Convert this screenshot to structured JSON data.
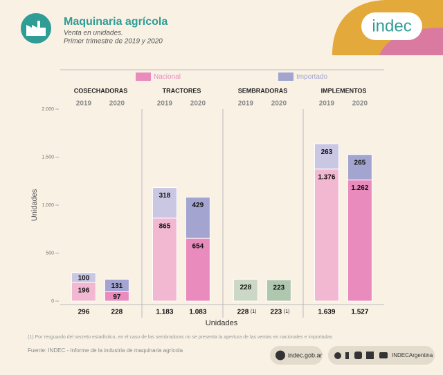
{
  "header": {
    "logo": "indec",
    "title": "Maquinaria agrícola",
    "subtitle": "Venta en unidades.",
    "period": "Primer trimestre de 2019 y 2020"
  },
  "chart_data": {
    "type": "bar",
    "stacked": true,
    "groups": [
      "COSECHADORAS",
      "TRACTORES",
      "SEMBRADORAS",
      "IMPLEMENTOS"
    ],
    "categories": [
      "2019",
      "2020",
      "2019",
      "2020",
      "2019",
      "2020",
      "2019",
      "2020"
    ],
    "series": [
      {
        "name": "Nacional",
        "color": "#e98bbd",
        "colors": [
          "#f2b8d2",
          "#e98bbd",
          "#f2b8d2",
          "#e98bbd",
          "#f2b8d2",
          "#e98bbd",
          "#f2b8d2",
          "#e98bbd"
        ],
        "values": [
          196,
          97,
          865,
          654,
          null,
          null,
          1376,
          1262
        ],
        "value_labels": [
          "196",
          "97",
          "865",
          "654",
          null,
          null,
          "1.376",
          "1.262"
        ]
      },
      {
        "name": "Importado",
        "color": "#a3a4cf",
        "colors": [
          "#c9c7e2",
          "#a3a4cf",
          "#c9c7e2",
          "#a3a4cf",
          "#c9c7e2",
          "#a3a4cf",
          "#c9c7e2",
          "#a3a4cf"
        ],
        "values": [
          100,
          131,
          318,
          429,
          null,
          null,
          263,
          265
        ]
      },
      {
        "colors": [
          "#cbd8c6",
          "#b0c7af",
          "#cbd8c6",
          "#b0c7af",
          "#cbd8c6",
          "#b0c7af",
          "#cbd8c6",
          "#b0c7af"
        ],
        "values": [
          null,
          null,
          null,
          null,
          228,
          223,
          null,
          null
        ]
      }
    ],
    "totals": {
      "values": [
        296,
        228,
        1183,
        1083,
        228,
        223,
        1639,
        1527
      ],
      "value_labels": [
        "296",
        "228",
        "1.183",
        "1.083",
        "228",
        "223",
        "1.639",
        "1.527"
      ],
      "notes": [
        null,
        null,
        null,
        null,
        "(1)",
        "(1)",
        null,
        null
      ]
    },
    "ylim": [
      0,
      2000
    ],
    "yticks": [
      0,
      {
        "value": 500,
        "label": "500"
      },
      {
        "value": 1000,
        "label": "1.000"
      },
      {
        "value": 1500,
        "label": "1.500"
      },
      {
        "value": 2000,
        "label": "2.000"
      }
    ],
    "ylabel": "Unidades",
    "xlabel": "Unidades",
    "legend": "top"
  },
  "footer": {
    "note": "(1) Por resguardo del secreto estadístico, en el caso de las sembradoras no se presenta la apertura de las ventas en nacionales e importadas",
    "source": "Fuente: INDEC - Informe de la industria de maquinaria agrícola",
    "web": "indec.gob.ar",
    "social": "INDECArgentina"
  }
}
